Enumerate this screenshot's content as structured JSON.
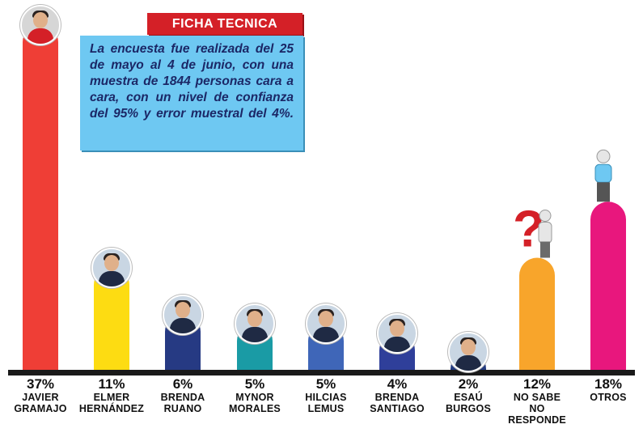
{
  "ficha": {
    "title": "FICHA TECNICA",
    "text": "La encuesta fue realizada del 25 de mayo al 4 de junio, con una muestra de 1844 personas cara a cara, con un nivel de confianza del 95% y error muestral del 4%."
  },
  "chart_data": {
    "type": "bar",
    "categories": [
      "JAVIER GRAMAJO",
      "ELMER HERNÁNDEZ",
      "BRENDA RUANO",
      "MYNOR MORALES",
      "HILCIAS LEMUS",
      "BRENDA SANTIAGO",
      "ESAÚ BURGOS",
      "NO SABE NO RESPONDE",
      "OTROS"
    ],
    "values": [
      37,
      11,
      6,
      5,
      5,
      4,
      2,
      12,
      18
    ],
    "value_labels": [
      "37%",
      "11%",
      "6%",
      "5%",
      "5%",
      "4%",
      "2%",
      "12%",
      "18%"
    ],
    "label_lines": [
      [
        "JAVIER",
        "GRAMAJO"
      ],
      [
        "ELMER",
        "HERNÁNDEZ"
      ],
      [
        "BRENDA",
        "RUANO"
      ],
      [
        "MYNOR",
        "MORALES"
      ],
      [
        "HILCIAS",
        "LEMUS"
      ],
      [
        "BRENDA",
        "SANTIAGO"
      ],
      [
        "ESAÚ",
        "BURGOS"
      ],
      [
        "NO SABE",
        "NO RESPONDE"
      ],
      [
        "OTROS"
      ]
    ],
    "colors": [
      "#ef3e36",
      "#fddc12",
      "#263a83",
      "#1a9ba5",
      "#3f66b8",
      "#2f3f9a",
      "#223a7f",
      "#f8a52b",
      "#e8177d"
    ],
    "icons": [
      "candidate-photo",
      "candidate-photo",
      "candidate-photo",
      "candidate-photo",
      "candidate-photo",
      "candidate-photo",
      "candidate-photo",
      "question-mark-figure-icon",
      "person-figure-icon"
    ],
    "ylim": [
      0,
      37
    ],
    "grid": false,
    "legend": "none"
  }
}
